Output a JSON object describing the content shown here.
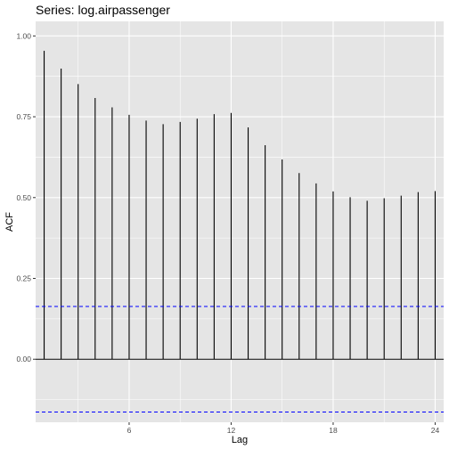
{
  "chart_data": {
    "type": "bar",
    "title": "Series: log.airpassenger",
    "xlabel": "Lag",
    "ylabel": "ACF",
    "x": [
      1,
      2,
      3,
      4,
      5,
      6,
      7,
      8,
      9,
      10,
      11,
      12,
      13,
      14,
      15,
      16,
      17,
      18,
      19,
      20,
      21,
      22,
      23,
      24
    ],
    "values": [
      0.954,
      0.899,
      0.851,
      0.808,
      0.779,
      0.756,
      0.738,
      0.727,
      0.734,
      0.744,
      0.758,
      0.762,
      0.717,
      0.662,
      0.618,
      0.576,
      0.544,
      0.519,
      0.501,
      0.49,
      0.498,
      0.506,
      0.517,
      0.52
    ],
    "confidence_bound": 0.1633,
    "xlim": [
      0.5,
      24.5
    ],
    "ylim": [
      -0.195,
      1.045
    ],
    "x_ticks": [
      6,
      12,
      18,
      24
    ],
    "x_tick_labels": [
      "6",
      "12",
      "18",
      "24"
    ],
    "y_ticks": [
      0,
      0.25,
      0.5,
      0.75,
      1.0
    ],
    "y_tick_labels": [
      "0.00",
      "0.25",
      "0.50",
      "0.75",
      "1.00"
    ],
    "grid": true,
    "colors": {
      "panel_background": "#e5e5e5",
      "grid": "#ffffff",
      "segments": "#000000",
      "confidence_lines": "#0000ff"
    }
  }
}
